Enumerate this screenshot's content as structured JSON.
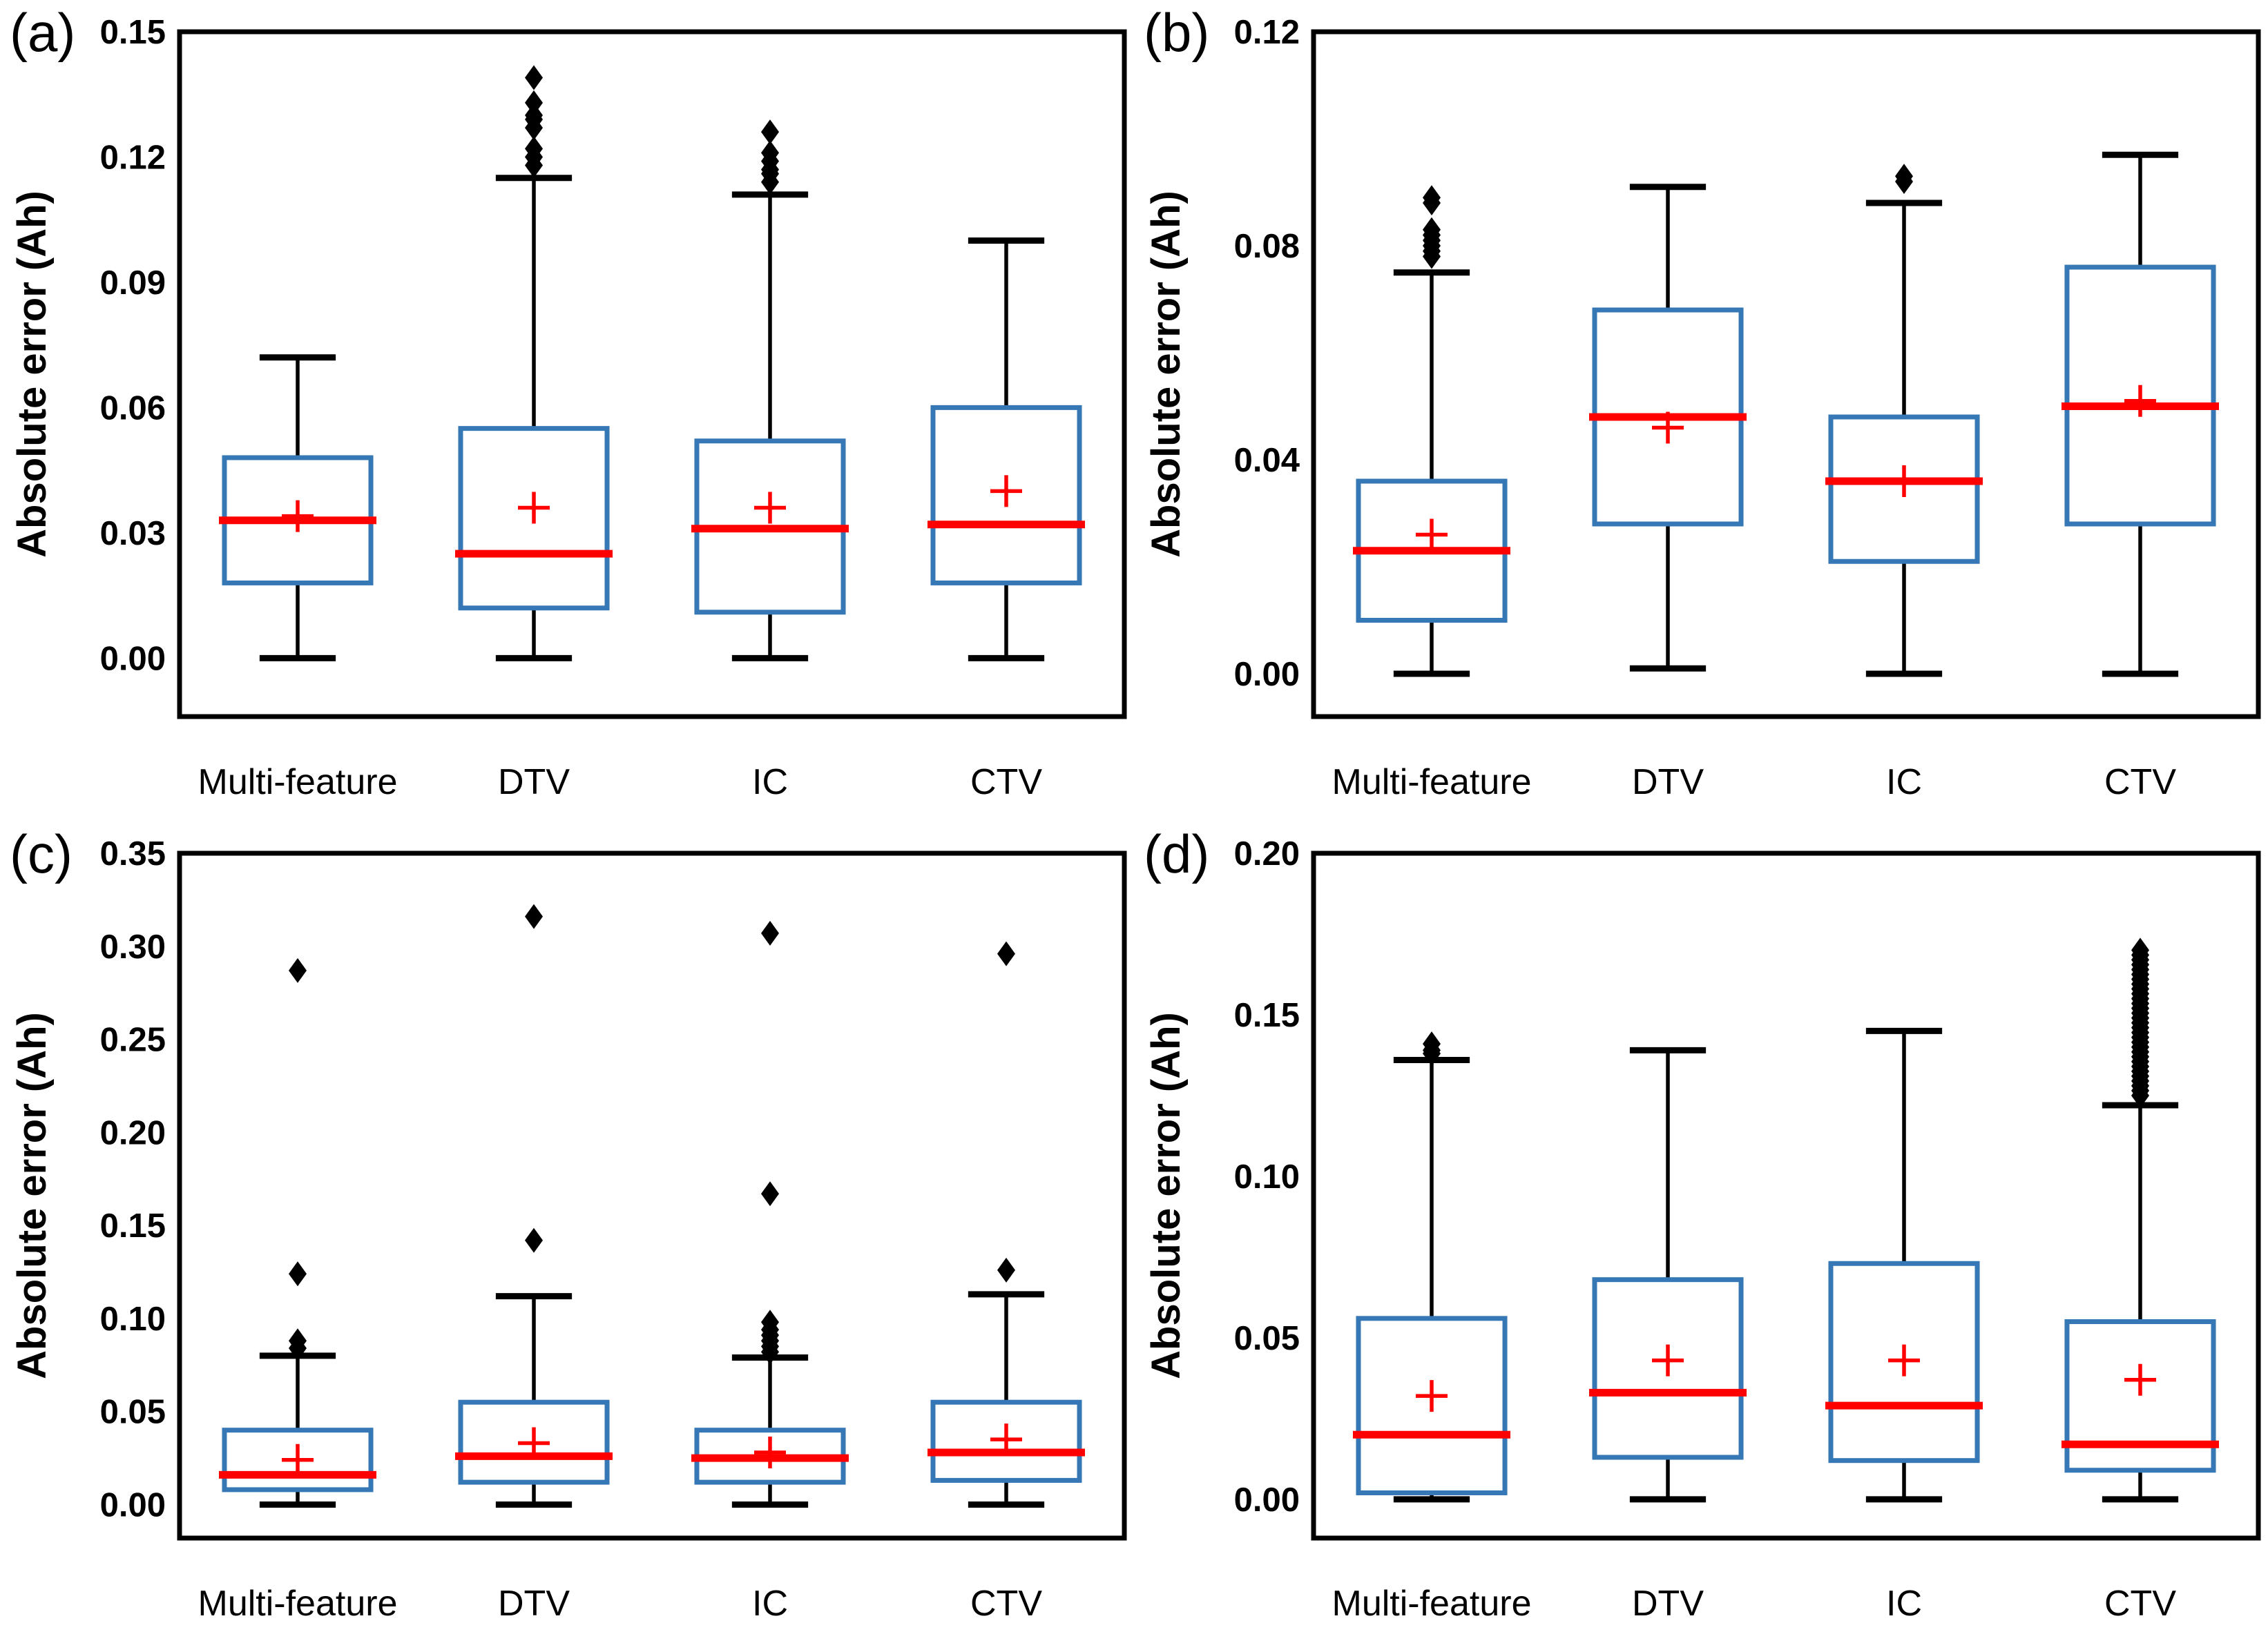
{
  "figure": {
    "ylabel": "Absolute error (Ah)",
    "categories": [
      "Multi-feature",
      "DTV",
      "IC",
      "CTV"
    ],
    "colors": {
      "box_stroke": "#3677B5",
      "median": "#FF0000",
      "mean_marker": "#FF0000",
      "whisker": "#000000",
      "outlier": "#000000",
      "frame": "#000000",
      "background": "#ffffff"
    }
  },
  "chart_data": [
    {
      "type": "boxplot",
      "panel_label": "(a)",
      "ylabel": "Absolute error (Ah)",
      "categories": [
        "Multi-feature",
        "DTV",
        "IC",
        "CTV"
      ],
      "ylim": [
        -0.014,
        0.15
      ],
      "ytick_labels": [
        "0.00",
        "0.03",
        "0.06",
        "0.09",
        "0.12",
        "0.15"
      ],
      "series": [
        {
          "category": "Multi-feature",
          "whisker_low": 0.0,
          "q1": 0.018,
          "median": 0.033,
          "mean": 0.034,
          "q3": 0.048,
          "whisker_high": 0.072,
          "outliers": []
        },
        {
          "category": "DTV",
          "whisker_low": 0.0,
          "q1": 0.012,
          "median": 0.025,
          "mean": 0.036,
          "q3": 0.055,
          "whisker_high": 0.115,
          "outliers": [
            0.139,
            0.133,
            0.13,
            0.129,
            0.127,
            0.122,
            0.12,
            0.118
          ]
        },
        {
          "category": "IC",
          "whisker_low": 0.0,
          "q1": 0.011,
          "median": 0.031,
          "mean": 0.036,
          "q3": 0.052,
          "whisker_high": 0.111,
          "outliers": [
            0.126,
            0.121,
            0.119,
            0.117,
            0.116,
            0.114
          ]
        },
        {
          "category": "CTV",
          "whisker_low": 0.0,
          "q1": 0.018,
          "median": 0.032,
          "mean": 0.04,
          "q3": 0.06,
          "whisker_high": 0.1,
          "outliers": []
        }
      ]
    },
    {
      "type": "boxplot",
      "panel_label": "(b)",
      "ylabel": "Absolute error (Ah)",
      "categories": [
        "Multi-feature",
        "DTV",
        "IC",
        "CTV"
      ],
      "ylim": [
        -0.008,
        0.12
      ],
      "ytick_labels": [
        "0.00",
        "0.04",
        "0.08",
        "0.12"
      ],
      "series": [
        {
          "category": "Multi-feature",
          "whisker_low": 0.0,
          "q1": 0.01,
          "median": 0.023,
          "mean": 0.026,
          "q3": 0.036,
          "whisker_high": 0.075,
          "outliers": [
            0.089,
            0.088,
            0.083,
            0.082,
            0.081,
            0.08,
            0.079,
            0.078
          ]
        },
        {
          "category": "DTV",
          "whisker_low": 0.001,
          "q1": 0.028,
          "median": 0.048,
          "mean": 0.046,
          "q3": 0.068,
          "whisker_high": 0.091,
          "outliers": []
        },
        {
          "category": "IC",
          "whisker_low": 0.0,
          "q1": 0.021,
          "median": 0.036,
          "mean": 0.036,
          "q3": 0.048,
          "whisker_high": 0.088,
          "outliers": [
            0.093,
            0.092
          ]
        },
        {
          "category": "CTV",
          "whisker_low": 0.0,
          "q1": 0.028,
          "median": 0.05,
          "mean": 0.051,
          "q3": 0.076,
          "whisker_high": 0.097,
          "outliers": []
        }
      ]
    },
    {
      "type": "boxplot",
      "panel_label": "(c)",
      "ylabel": "Absolute error (Ah)",
      "categories": [
        "Multi-feature",
        "DTV",
        "IC",
        "CTV"
      ],
      "ylim": [
        -0.018,
        0.35
      ],
      "ytick_labels": [
        "0.00",
        "0.05",
        "0.10",
        "0.15",
        "0.20",
        "0.25",
        "0.30",
        "0.35"
      ],
      "series": [
        {
          "category": "Multi-feature",
          "whisker_low": 0.0,
          "q1": 0.008,
          "median": 0.016,
          "mean": 0.024,
          "q3": 0.04,
          "whisker_high": 0.08,
          "outliers": [
            0.287,
            0.124,
            0.088,
            0.084
          ]
        },
        {
          "category": "DTV",
          "whisker_low": 0.0,
          "q1": 0.012,
          "median": 0.026,
          "mean": 0.033,
          "q3": 0.055,
          "whisker_high": 0.112,
          "outliers": [
            0.316,
            0.142
          ]
        },
        {
          "category": "IC",
          "whisker_low": 0.0,
          "q1": 0.012,
          "median": 0.025,
          "mean": 0.028,
          "q3": 0.04,
          "whisker_high": 0.079,
          "outliers": [
            0.307,
            0.167,
            0.098,
            0.094,
            0.091,
            0.088,
            0.085,
            0.082
          ]
        },
        {
          "category": "CTV",
          "whisker_low": 0.0,
          "q1": 0.013,
          "median": 0.028,
          "mean": 0.035,
          "q3": 0.055,
          "whisker_high": 0.113,
          "outliers": [
            0.296,
            0.126
          ]
        }
      ]
    },
    {
      "type": "boxplot",
      "panel_label": "(d)",
      "ylabel": "Absolute error (Ah)",
      "categories": [
        "Multi-feature",
        "DTV",
        "IC",
        "CTV"
      ],
      "ylim": [
        -0.012,
        0.2
      ],
      "ytick_labels": [
        "0.00",
        "0.05",
        "0.10",
        "0.15",
        "0.20"
      ],
      "series": [
        {
          "category": "Multi-feature",
          "whisker_low": 0.0,
          "q1": 0.002,
          "median": 0.02,
          "mean": 0.032,
          "q3": 0.056,
          "whisker_high": 0.136,
          "outliers": [
            0.138,
            0.139,
            0.141
          ]
        },
        {
          "category": "DTV",
          "whisker_low": 0.0,
          "q1": 0.013,
          "median": 0.033,
          "mean": 0.043,
          "q3": 0.068,
          "whisker_high": 0.139,
          "outliers": []
        },
        {
          "category": "IC",
          "whisker_low": 0.0,
          "q1": 0.012,
          "median": 0.029,
          "mean": 0.043,
          "q3": 0.073,
          "whisker_high": 0.145,
          "outliers": []
        },
        {
          "category": "CTV",
          "whisker_low": 0.0,
          "q1": 0.009,
          "median": 0.017,
          "mean": 0.037,
          "q3": 0.055,
          "whisker_high": 0.122,
          "outliers": [
            0.125,
            0.1265,
            0.128,
            0.1295,
            0.131,
            0.1325,
            0.134,
            0.1355,
            0.137,
            0.1385,
            0.14,
            0.1415,
            0.143,
            0.1445,
            0.146,
            0.1475,
            0.149,
            0.1505,
            0.152,
            0.1535,
            0.155,
            0.1565,
            0.158,
            0.1595,
            0.161,
            0.1625,
            0.164,
            0.1655,
            0.167,
            0.1685,
            0.17
          ]
        }
      ]
    }
  ]
}
